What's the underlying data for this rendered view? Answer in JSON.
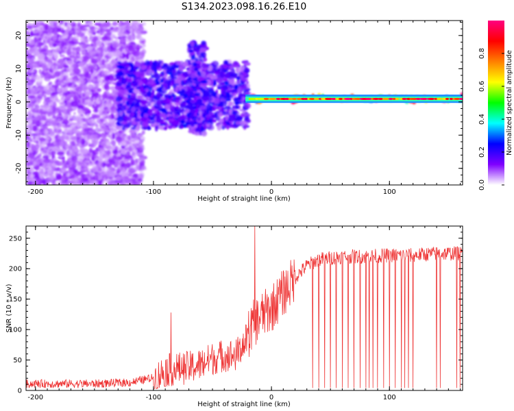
{
  "figure": {
    "title": "S134.2023.098.16.26.E10"
  },
  "chart_data": [
    {
      "type": "heatmap",
      "panel": "top",
      "xlabel": "Height of straight line (km)",
      "ylabel": "Frequency (Hz)",
      "xlim": [
        -208,
        162
      ],
      "ylim": [
        -25,
        24.5
      ],
      "x_ticks": [
        -200,
        -100,
        0,
        100
      ],
      "x_tick_labels": [
        "-200",
        "-100",
        "0",
        "100"
      ],
      "y_ticks": [
        -20,
        -10,
        0,
        10,
        20
      ],
      "y_tick_labels": [
        "-20",
        "-10",
        "0",
        "10",
        "20"
      ],
      "grid": false,
      "colorbar": {
        "label": "Normalized spectral amplitude",
        "range": [
          0,
          1
        ],
        "ticks": [
          0.0,
          0.2,
          0.4,
          0.6,
          0.8
        ],
        "tick_labels": [
          "0.0",
          "0.2",
          "0.4",
          "0.6",
          "0.8"
        ],
        "colors": [
          "#ffffff",
          "#7f00ff",
          "#0000ff",
          "#00ffff",
          "#00ff00",
          "#ffff00",
          "#ff8000",
          "#ff0000",
          "#ff0080"
        ]
      },
      "regions": [
        {
          "x": [
            -208,
            -108
          ],
          "f": [
            -25,
            24
          ],
          "amplitude": 0.1
        },
        {
          "x": [
            -130,
            -20
          ],
          "f": [
            -8,
            12
          ],
          "amplitude": 0.2
        },
        {
          "x": [
            -70,
            -55
          ],
          "f": [
            -10,
            18
          ],
          "amplitude": 0.2
        },
        {
          "x": [
            -20,
            162
          ],
          "f": [
            0,
            2
          ],
          "amplitude": 0.85
        }
      ]
    },
    {
      "type": "line",
      "panel": "bottom",
      "xlabel": "Height of straight line (km)",
      "ylabel": "SNR (10 * v/v)",
      "xlim": [
        -208,
        162
      ],
      "ylim": [
        0,
        270
      ],
      "x_ticks": [
        -200,
        -100,
        0,
        100
      ],
      "x_tick_labels": [
        "-200",
        "-100",
        "0",
        "100"
      ],
      "y_ticks": [
        0,
        50,
        100,
        150,
        200,
        250
      ],
      "y_tick_labels": [
        "0",
        "50",
        "100",
        "150",
        "200",
        "250"
      ],
      "grid": false,
      "color": "#ee3333",
      "x": [
        -208,
        -180,
        -150,
        -120,
        -100,
        -90,
        -80,
        -70,
        -60,
        -50,
        -40,
        -30,
        -20,
        -15,
        -10,
        0,
        10,
        20,
        30,
        40,
        60,
        80,
        100,
        120,
        140,
        162
      ],
      "y": [
        10,
        10,
        10,
        12,
        20,
        35,
        38,
        40,
        45,
        55,
        60,
        60,
        90,
        110,
        120,
        135,
        160,
        185,
        205,
        215,
        220,
        220,
        222,
        222,
        225,
        225
      ],
      "spikes": [
        {
          "x": -85,
          "y": 128
        },
        {
          "x": -14,
          "y": 270
        },
        {
          "x": 6,
          "y": 170
        }
      ],
      "dropouts_x": [
        35,
        40,
        45,
        50,
        55,
        60,
        65,
        70,
        75,
        80,
        83,
        86,
        90,
        95,
        100,
        105,
        110,
        113,
        116,
        120,
        140,
        143,
        157,
        160
      ]
    }
  ]
}
